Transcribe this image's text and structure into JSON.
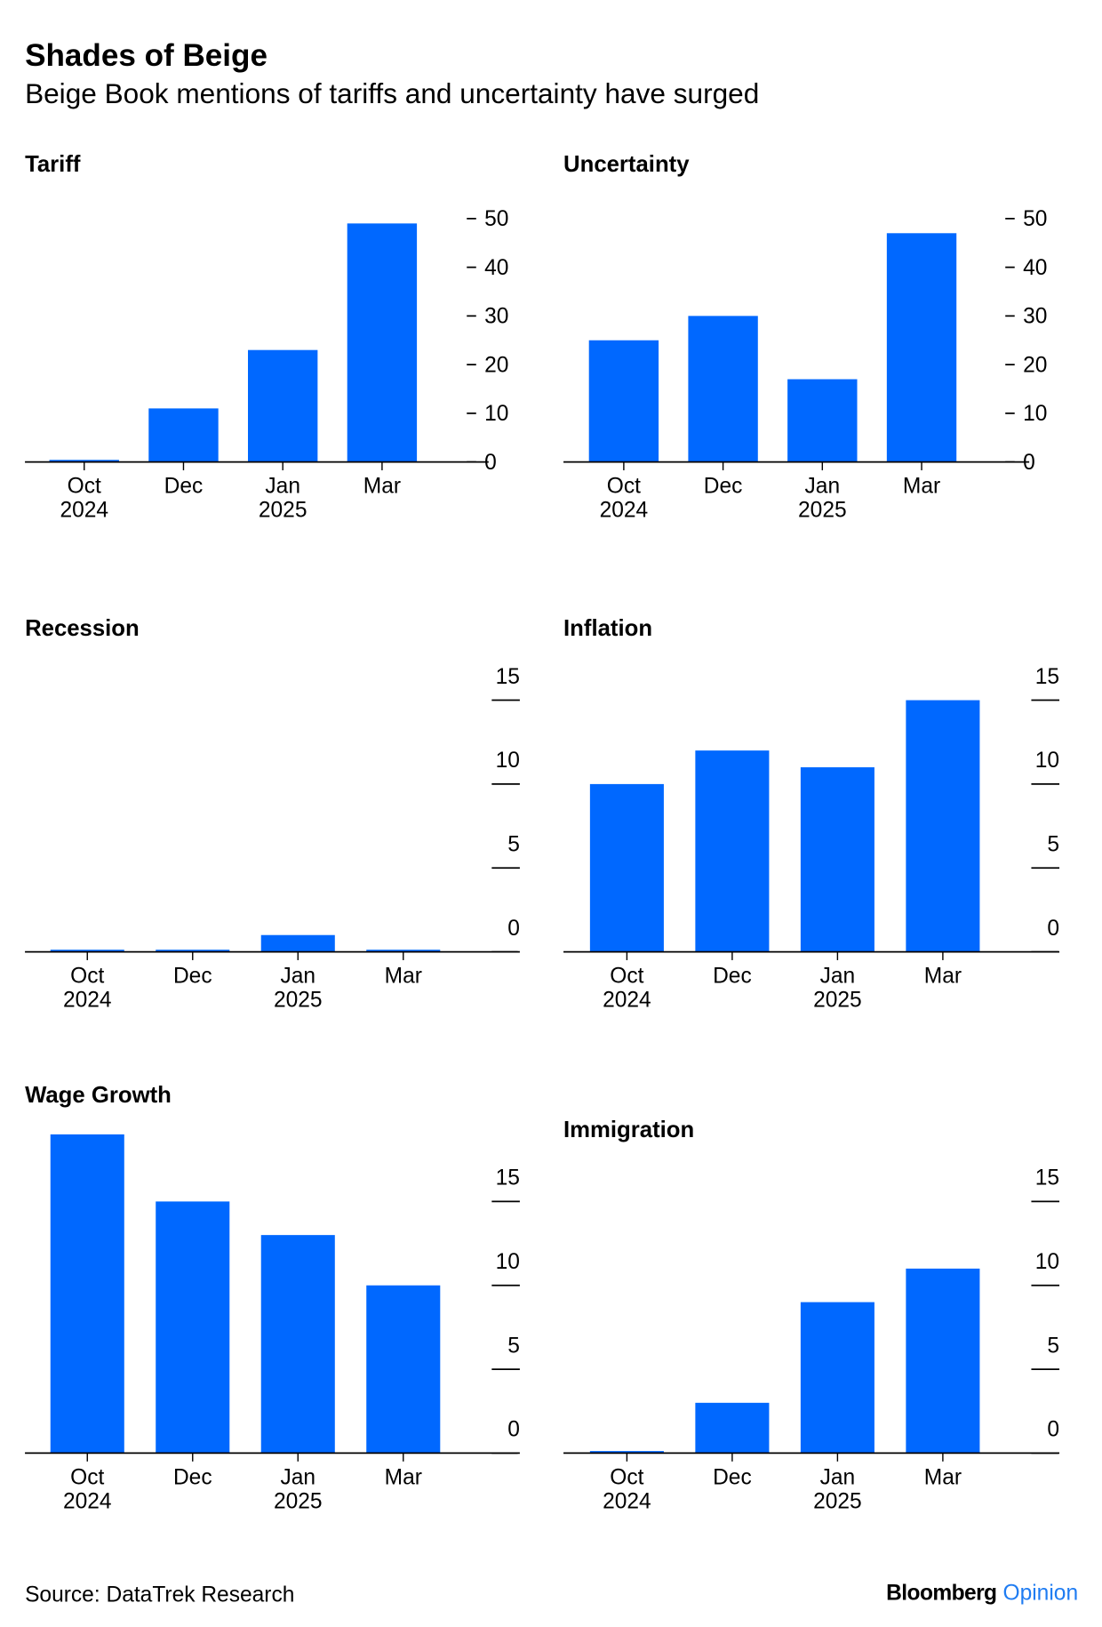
{
  "title": "Shades of Beige",
  "subtitle": "Beige Book mentions of tariffs and uncertainty have surged",
  "source": "Source: DataTrek Research",
  "brand": {
    "name": "Bloomberg",
    "section": "Opinion"
  },
  "chart_data": [
    {
      "type": "bar",
      "title": "Tariff",
      "categories": [
        [
          "Oct",
          "2024"
        ],
        [
          "Dec"
        ],
        [
          "Jan",
          "2025"
        ],
        [
          "Mar"
        ]
      ],
      "values": [
        0,
        11,
        23,
        49
      ],
      "color": "#0068ff",
      "ylim": [
        0,
        50
      ],
      "yticks": [
        0,
        10,
        20,
        30,
        40,
        50
      ]
    },
    {
      "type": "bar",
      "title": "Uncertainty",
      "categories": [
        [
          "Oct",
          "2024"
        ],
        [
          "Dec"
        ],
        [
          "Jan",
          "2025"
        ],
        [
          "Mar"
        ]
      ],
      "values": [
        25,
        30,
        17,
        47
      ],
      "color": "#0068ff",
      "ylim": [
        0,
        50
      ],
      "yticks": [
        0,
        10,
        20,
        30,
        40,
        50
      ]
    },
    {
      "type": "bar",
      "title": "Recession",
      "categories": [
        [
          "Oct",
          "2024"
        ],
        [
          "Dec"
        ],
        [
          "Jan",
          "2025"
        ],
        [
          "Mar"
        ]
      ],
      "values": [
        0,
        0,
        1,
        0
      ],
      "color": "#0068ff",
      "ylim": [
        0,
        15
      ],
      "yticks": [
        0,
        5,
        10,
        15
      ]
    },
    {
      "type": "bar",
      "title": "Inflation",
      "categories": [
        [
          "Oct",
          "2024"
        ],
        [
          "Dec"
        ],
        [
          "Jan",
          "2025"
        ],
        [
          "Mar"
        ]
      ],
      "values": [
        10,
        12,
        11,
        15
      ],
      "color": "#0068ff",
      "ylim": [
        0,
        15
      ],
      "yticks": [
        0,
        5,
        10,
        15
      ]
    },
    {
      "type": "bar",
      "title": "Wage Growth",
      "categories": [
        [
          "Oct",
          "2024"
        ],
        [
          "Dec"
        ],
        [
          "Jan",
          "2025"
        ],
        [
          "Mar"
        ]
      ],
      "values": [
        19,
        15,
        13,
        10
      ],
      "color": "#0068ff",
      "ylim": [
        0,
        19
      ],
      "yticks": [
        0,
        5,
        10,
        15
      ]
    },
    {
      "type": "bar",
      "title": "Immigration",
      "categories": [
        [
          "Oct",
          "2024"
        ],
        [
          "Dec"
        ],
        [
          "Jan",
          "2025"
        ],
        [
          "Mar"
        ]
      ],
      "values": [
        0,
        3,
        9,
        11
      ],
      "color": "#0068ff",
      "ylim": [
        0,
        15
      ],
      "yticks": [
        0,
        5,
        10,
        15
      ]
    }
  ]
}
